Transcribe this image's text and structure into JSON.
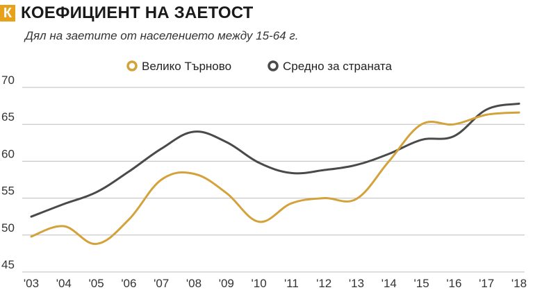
{
  "header": {
    "logo_letter": "К",
    "title": "КОЕФИЦИЕНТ НА ЗАЕТОСТ",
    "subtitle": "Дял на заетите от населението между 15-64 г."
  },
  "chart_data": {
    "type": "line",
    "title": "КОЕФИЦИЕНТ НА ЗАЕТОСТ",
    "subtitle": "Дял на заетите от населението между 15-64 г.",
    "xlabel": "",
    "ylabel": "",
    "categories": [
      "'03",
      "'04",
      "'05",
      "'06",
      "'07",
      "'08",
      "'09",
      "'10",
      "'11",
      "'12",
      "'13",
      "'14",
      "'15",
      "'16",
      "'17",
      "'18"
    ],
    "ylim": [
      45,
      70
    ],
    "yticks": [
      45,
      50,
      55,
      60,
      65,
      70
    ],
    "grid": true,
    "legend_position": "top",
    "series": [
      {
        "name": "Велико Търново",
        "color": "#d4a23a",
        "values": [
          49.8,
          51.2,
          48.8,
          52.1,
          57.5,
          58.3,
          55.7,
          51.8,
          54.3,
          55.0,
          54.9,
          60.0,
          65.0,
          65.0,
          66.3,
          66.6
        ]
      },
      {
        "name": "Средно за страната",
        "color": "#4a4a4a",
        "values": [
          52.5,
          54.2,
          55.8,
          58.6,
          61.7,
          64.0,
          62.6,
          59.8,
          58.4,
          58.8,
          59.5,
          61.0,
          62.9,
          63.4,
          67.0,
          67.8
        ]
      }
    ]
  }
}
